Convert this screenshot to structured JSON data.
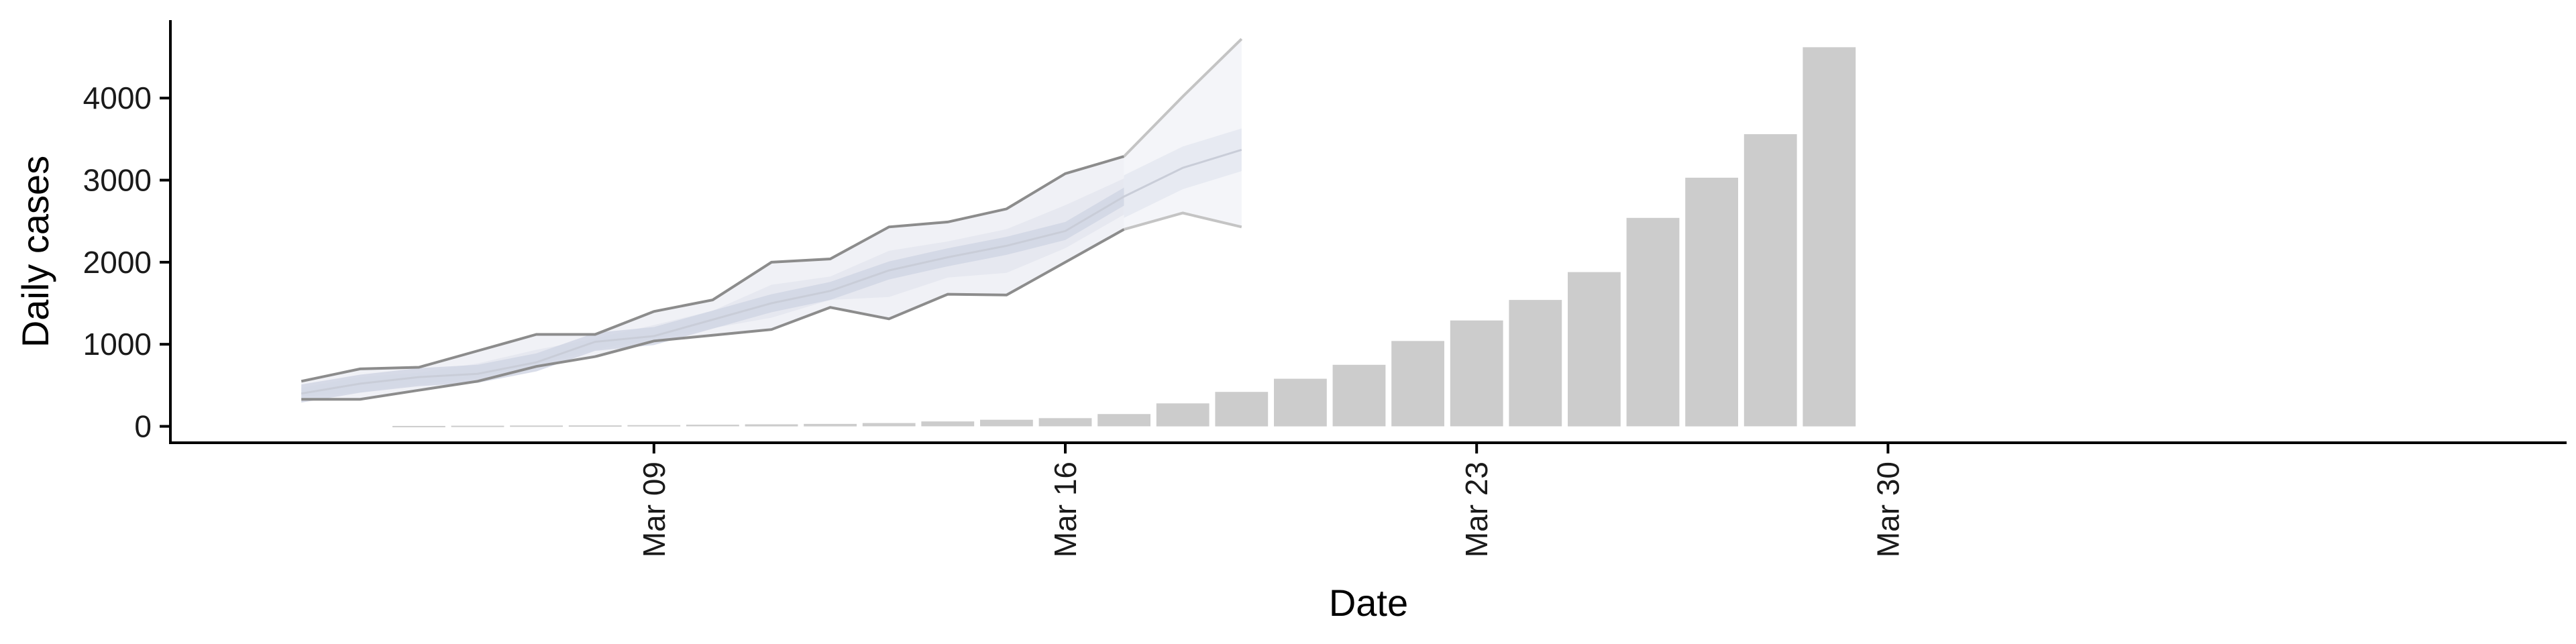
{
  "chart_data": {
    "type": "bar",
    "title": "",
    "xlabel": "Date",
    "ylabel": "Daily cases",
    "x_axis": {
      "type": "date",
      "range": [
        "2020-03-01",
        "2020-03-30"
      ],
      "ticks": [
        {
          "date": "2020-03-09",
          "label": "Mar 09"
        },
        {
          "date": "2020-03-16",
          "label": "Mar 16"
        },
        {
          "date": "2020-03-23",
          "label": "Mar 23"
        },
        {
          "date": "2020-03-30",
          "label": "Mar 30"
        }
      ]
    },
    "y_axis": {
      "range": [
        -200,
        4950
      ],
      "ticks": [
        0,
        1000,
        2000,
        3000,
        4000
      ]
    },
    "grid": false,
    "colors": {
      "bars": "#cccccc",
      "axis": "#000000",
      "outer_band": "#e4e6ee",
      "mid_band": "#dfe2ec",
      "inner_band": "#d0d5e3",
      "median_line": "#c9cdd8",
      "projection_band": "#f3f4f8",
      "projection_inner": "#e6e9f1",
      "bound_line_dark": "#8c8c8c",
      "bound_line_light": "#c4c4c4"
    },
    "observed_cases": [
      {
        "date": "2020-03-05",
        "value": 5
      },
      {
        "date": "2020-03-06",
        "value": 8
      },
      {
        "date": "2020-03-07",
        "value": 10
      },
      {
        "date": "2020-03-08",
        "value": 12
      },
      {
        "date": "2020-03-09",
        "value": 15
      },
      {
        "date": "2020-03-10",
        "value": 20
      },
      {
        "date": "2020-03-11",
        "value": 25
      },
      {
        "date": "2020-03-12",
        "value": 30
      },
      {
        "date": "2020-03-13",
        "value": 40
      },
      {
        "date": "2020-03-14",
        "value": 60
      },
      {
        "date": "2020-03-15",
        "value": 80
      },
      {
        "date": "2020-03-16",
        "value": 100
      },
      {
        "date": "2020-03-17",
        "value": 150
      },
      {
        "date": "2020-03-18",
        "value": 280
      },
      {
        "date": "2020-03-19",
        "value": 420
      },
      {
        "date": "2020-03-20",
        "value": 580
      },
      {
        "date": "2020-03-21",
        "value": 750
      },
      {
        "date": "2020-03-22",
        "value": 1040
      },
      {
        "date": "2020-03-23",
        "value": 1290
      },
      {
        "date": "2020-03-24",
        "value": 1540
      },
      {
        "date": "2020-03-25",
        "value": 1880
      },
      {
        "date": "2020-03-26",
        "value": 2540
      },
      {
        "date": "2020-03-27",
        "value": 3030
      },
      {
        "date": "2020-03-28",
        "value": 3560
      },
      {
        "date": "2020-03-29",
        "value": 4620
      }
    ],
    "estimates": [
      {
        "date": "2020-03-03",
        "lower": 330,
        "median": 400,
        "upper": 550
      },
      {
        "date": "2020-03-04",
        "lower": 330,
        "median": 520,
        "upper": 700
      },
      {
        "date": "2020-03-05",
        "lower": 440,
        "median": 600,
        "upper": 720
      },
      {
        "date": "2020-03-06",
        "lower": 550,
        "median": 640,
        "upper": 920
      },
      {
        "date": "2020-03-07",
        "lower": 730,
        "median": 780,
        "upper": 1120
      },
      {
        "date": "2020-03-08",
        "lower": 850,
        "median": 1030,
        "upper": 1120
      },
      {
        "date": "2020-03-09",
        "lower": 1040,
        "median": 1100,
        "upper": 1400
      },
      {
        "date": "2020-03-10",
        "lower": 1110,
        "median": 1300,
        "upper": 1540
      },
      {
        "date": "2020-03-11",
        "lower": 1180,
        "median": 1500,
        "upper": 2000
      },
      {
        "date": "2020-03-12",
        "lower": 1450,
        "median": 1650,
        "upper": 2040
      },
      {
        "date": "2020-03-13",
        "lower": 1310,
        "median": 1900,
        "upper": 2430
      },
      {
        "date": "2020-03-14",
        "lower": 1610,
        "median": 2060,
        "upper": 2490
      },
      {
        "date": "2020-03-15",
        "lower": 1600,
        "median": 2200,
        "upper": 2650
      },
      {
        "date": "2020-03-16",
        "lower": 2000,
        "median": 2380,
        "upper": 3080
      },
      {
        "date": "2020-03-17",
        "lower": 2400,
        "median": 2800,
        "upper": 3290
      },
      {
        "date": "2020-03-18",
        "lower": 2600,
        "median": 3150,
        "upper": 4020
      },
      {
        "date": "2020-03-19",
        "lower": 2430,
        "median": 3370,
        "upper": 4720
      }
    ]
  }
}
